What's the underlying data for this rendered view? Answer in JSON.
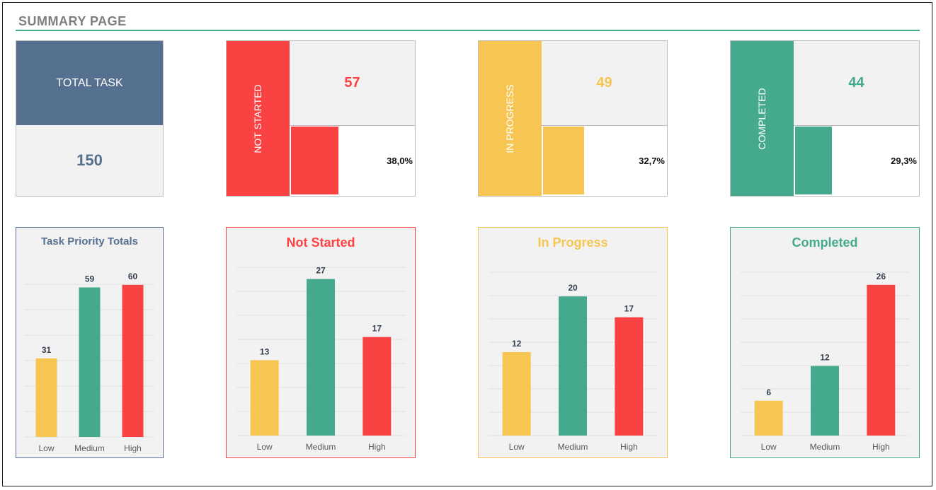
{
  "page": {
    "title": "SUMMARY PAGE"
  },
  "colors": {
    "total": "#56718f",
    "not_started": "#fb4243",
    "in_progress": "#f7c551",
    "completed": "#45aa8d",
    "low": "#f7c551",
    "medium": "#45aa8d",
    "high": "#fb4243"
  },
  "kpi": {
    "total": {
      "label": "TOTAL TASK",
      "value": "150"
    },
    "not_started": {
      "label": "NOT STARTED",
      "count": "57",
      "percent_text": "38,0%",
      "percent": 0.38
    },
    "in_progress": {
      "label": "IN PROGRESS",
      "count": "49",
      "percent_text": "32,7%",
      "percent": 0.327
    },
    "completed": {
      "label": "COMPLETED",
      "count": "44",
      "percent_text": "29,3%",
      "percent": 0.293
    }
  },
  "chart_data": [
    {
      "type": "bar",
      "title": "Task Priority Totals",
      "categories": [
        "Low",
        "Medium",
        "High"
      ],
      "values": [
        31,
        59,
        60
      ],
      "ylim": [
        0,
        70
      ],
      "grid": true
    },
    {
      "type": "bar",
      "title": "Not Started",
      "categories": [
        "Low",
        "Medium",
        "High"
      ],
      "values": [
        13,
        27,
        17
      ],
      "ylim": [
        0,
        30
      ],
      "grid": true
    },
    {
      "type": "bar",
      "title": "In Progress",
      "categories": [
        "Low",
        "Medium",
        "High"
      ],
      "values": [
        12,
        20,
        17
      ],
      "ylim": [
        0,
        25
      ],
      "grid": true
    },
    {
      "type": "bar",
      "title": "Completed",
      "categories": [
        "Low",
        "Medium",
        "High"
      ],
      "values": [
        6,
        12,
        26
      ],
      "ylim": [
        0,
        30
      ],
      "grid": true
    }
  ]
}
